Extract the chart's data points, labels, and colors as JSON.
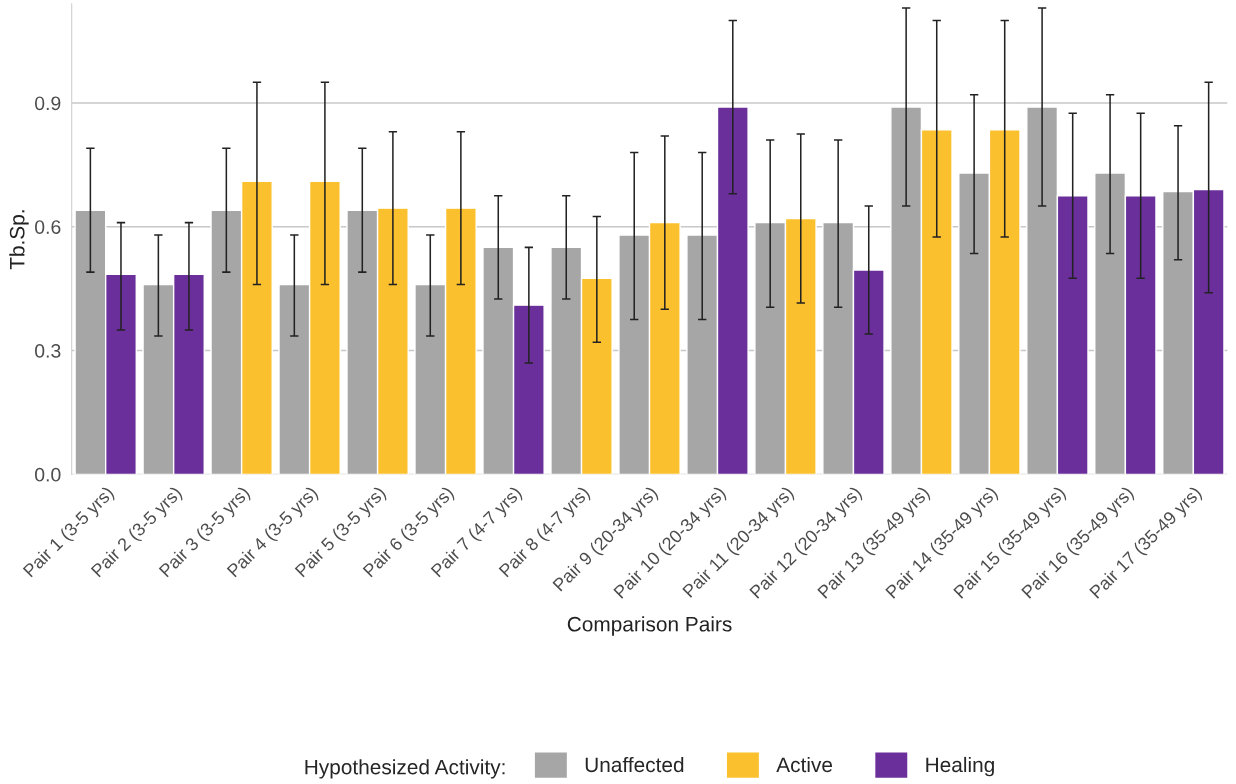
{
  "chart_data": {
    "type": "bar",
    "xlabel": "Comparison Pairs",
    "ylabel": "Tb.Sp.",
    "legend_title": "Hypothesized Activity:",
    "categories": [
      "Pair 1 (3-5 yrs)",
      "Pair 2 (3-5 yrs)",
      "Pair 3 (3-5 yrs)",
      "Pair 4 (3-5 yrs)",
      "Pair 5 (3-5 yrs)",
      "Pair 6 (3-5 yrs)",
      "Pair 7 (4-7 yrs)",
      "Pair 8 (4-7 yrs)",
      "Pair 9 (20-34 yrs)",
      "Pair 10 (20-34 yrs)",
      "Pair 11 (20-34 yrs)",
      "Pair 12 (20-34 yrs)",
      "Pair 13 (35-49 yrs)",
      "Pair 14 (35-49 yrs)",
      "Pair 15 (35-49 yrs)",
      "Pair 16 (35-49 yrs)",
      "Pair 17 (35-49 yrs)"
    ],
    "series": [
      {
        "name": "Unaffected",
        "color": "#a6a6a6",
        "values": [
          0.64,
          0.46,
          0.64,
          0.46,
          0.64,
          0.46,
          0.55,
          0.55,
          0.58,
          0.58,
          0.61,
          0.61,
          0.89,
          0.73,
          0.89,
          0.73,
          0.685
        ],
        "errors": [
          [
            0.49,
            0.79
          ],
          [
            0.335,
            0.58
          ],
          [
            0.49,
            0.79
          ],
          [
            0.335,
            0.58
          ],
          [
            0.49,
            0.79
          ],
          [
            0.335,
            0.58
          ],
          [
            0.425,
            0.675
          ],
          [
            0.425,
            0.675
          ],
          [
            0.375,
            0.78
          ],
          [
            0.375,
            0.78
          ],
          [
            0.405,
            0.81
          ],
          [
            0.405,
            0.81
          ],
          [
            0.65,
            1.13
          ],
          [
            0.535,
            0.92
          ],
          [
            0.65,
            1.13
          ],
          [
            0.535,
            0.92
          ],
          [
            0.52,
            0.845
          ]
        ]
      },
      {
        "name": "Active",
        "color": "#fbc02d",
        "values": [
          null,
          null,
          0.71,
          0.71,
          0.645,
          0.645,
          null,
          0.475,
          0.61,
          null,
          0.62,
          null,
          0.835,
          0.835,
          null,
          null,
          null
        ],
        "errors": [
          null,
          null,
          [
            0.46,
            0.95
          ],
          [
            0.46,
            0.95
          ],
          [
            0.46,
            0.83
          ],
          [
            0.46,
            0.83
          ],
          null,
          [
            0.32,
            0.625
          ],
          [
            0.4,
            0.82
          ],
          null,
          [
            0.415,
            0.825
          ],
          null,
          [
            0.575,
            1.1
          ],
          [
            0.575,
            1.1
          ],
          null,
          null,
          null
        ]
      },
      {
        "name": "Healing",
        "color": "#6a2f9a",
        "values": [
          0.485,
          0.485,
          null,
          null,
          null,
          null,
          0.41,
          null,
          null,
          0.89,
          null,
          0.495,
          null,
          null,
          0.675,
          0.675,
          0.69
        ],
        "errors": [
          [
            0.35,
            0.61
          ],
          [
            0.35,
            0.61
          ],
          null,
          null,
          null,
          null,
          [
            0.27,
            0.55
          ],
          null,
          null,
          [
            0.68,
            1.1
          ],
          null,
          [
            0.34,
            0.65
          ],
          null,
          null,
          [
            0.475,
            0.875
          ],
          [
            0.475,
            0.875
          ],
          [
            0.44,
            0.95
          ]
        ]
      }
    ],
    "ylim": [
      0,
      1.14
    ],
    "yticks": [
      {
        "value": 0,
        "label": "0.0"
      },
      0.3,
      0.6,
      0.9
    ],
    "grid": "y",
    "legend": "bottom"
  }
}
